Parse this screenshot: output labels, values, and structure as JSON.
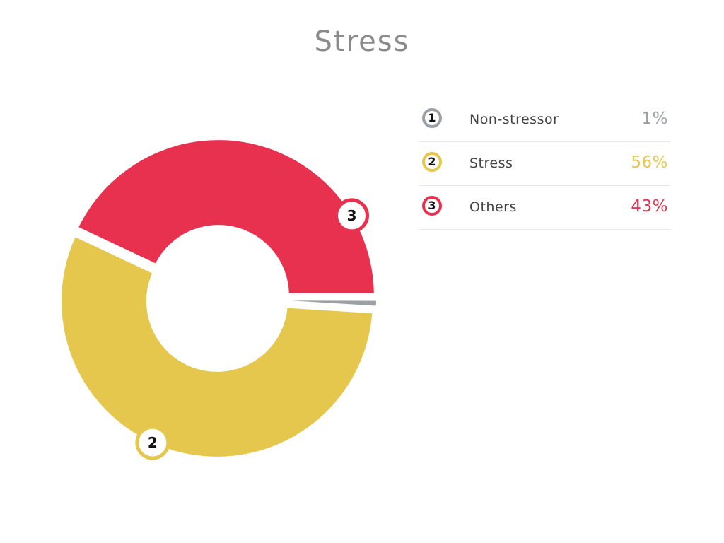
{
  "chart_data": {
    "type": "pie",
    "title": "Stress",
    "slices": [
      {
        "id": "1",
        "label": "Non-stressor",
        "value": 1,
        "value_label": "1%",
        "color": "#9aa0a6"
      },
      {
        "id": "2",
        "label": "Stress",
        "value": 56,
        "value_label": "56%",
        "color": "#e5c74d"
      },
      {
        "id": "3",
        "label": "Others",
        "value": 43,
        "value_label": "43%",
        "color": "#e8314f"
      }
    ],
    "legend_placement": "right"
  }
}
